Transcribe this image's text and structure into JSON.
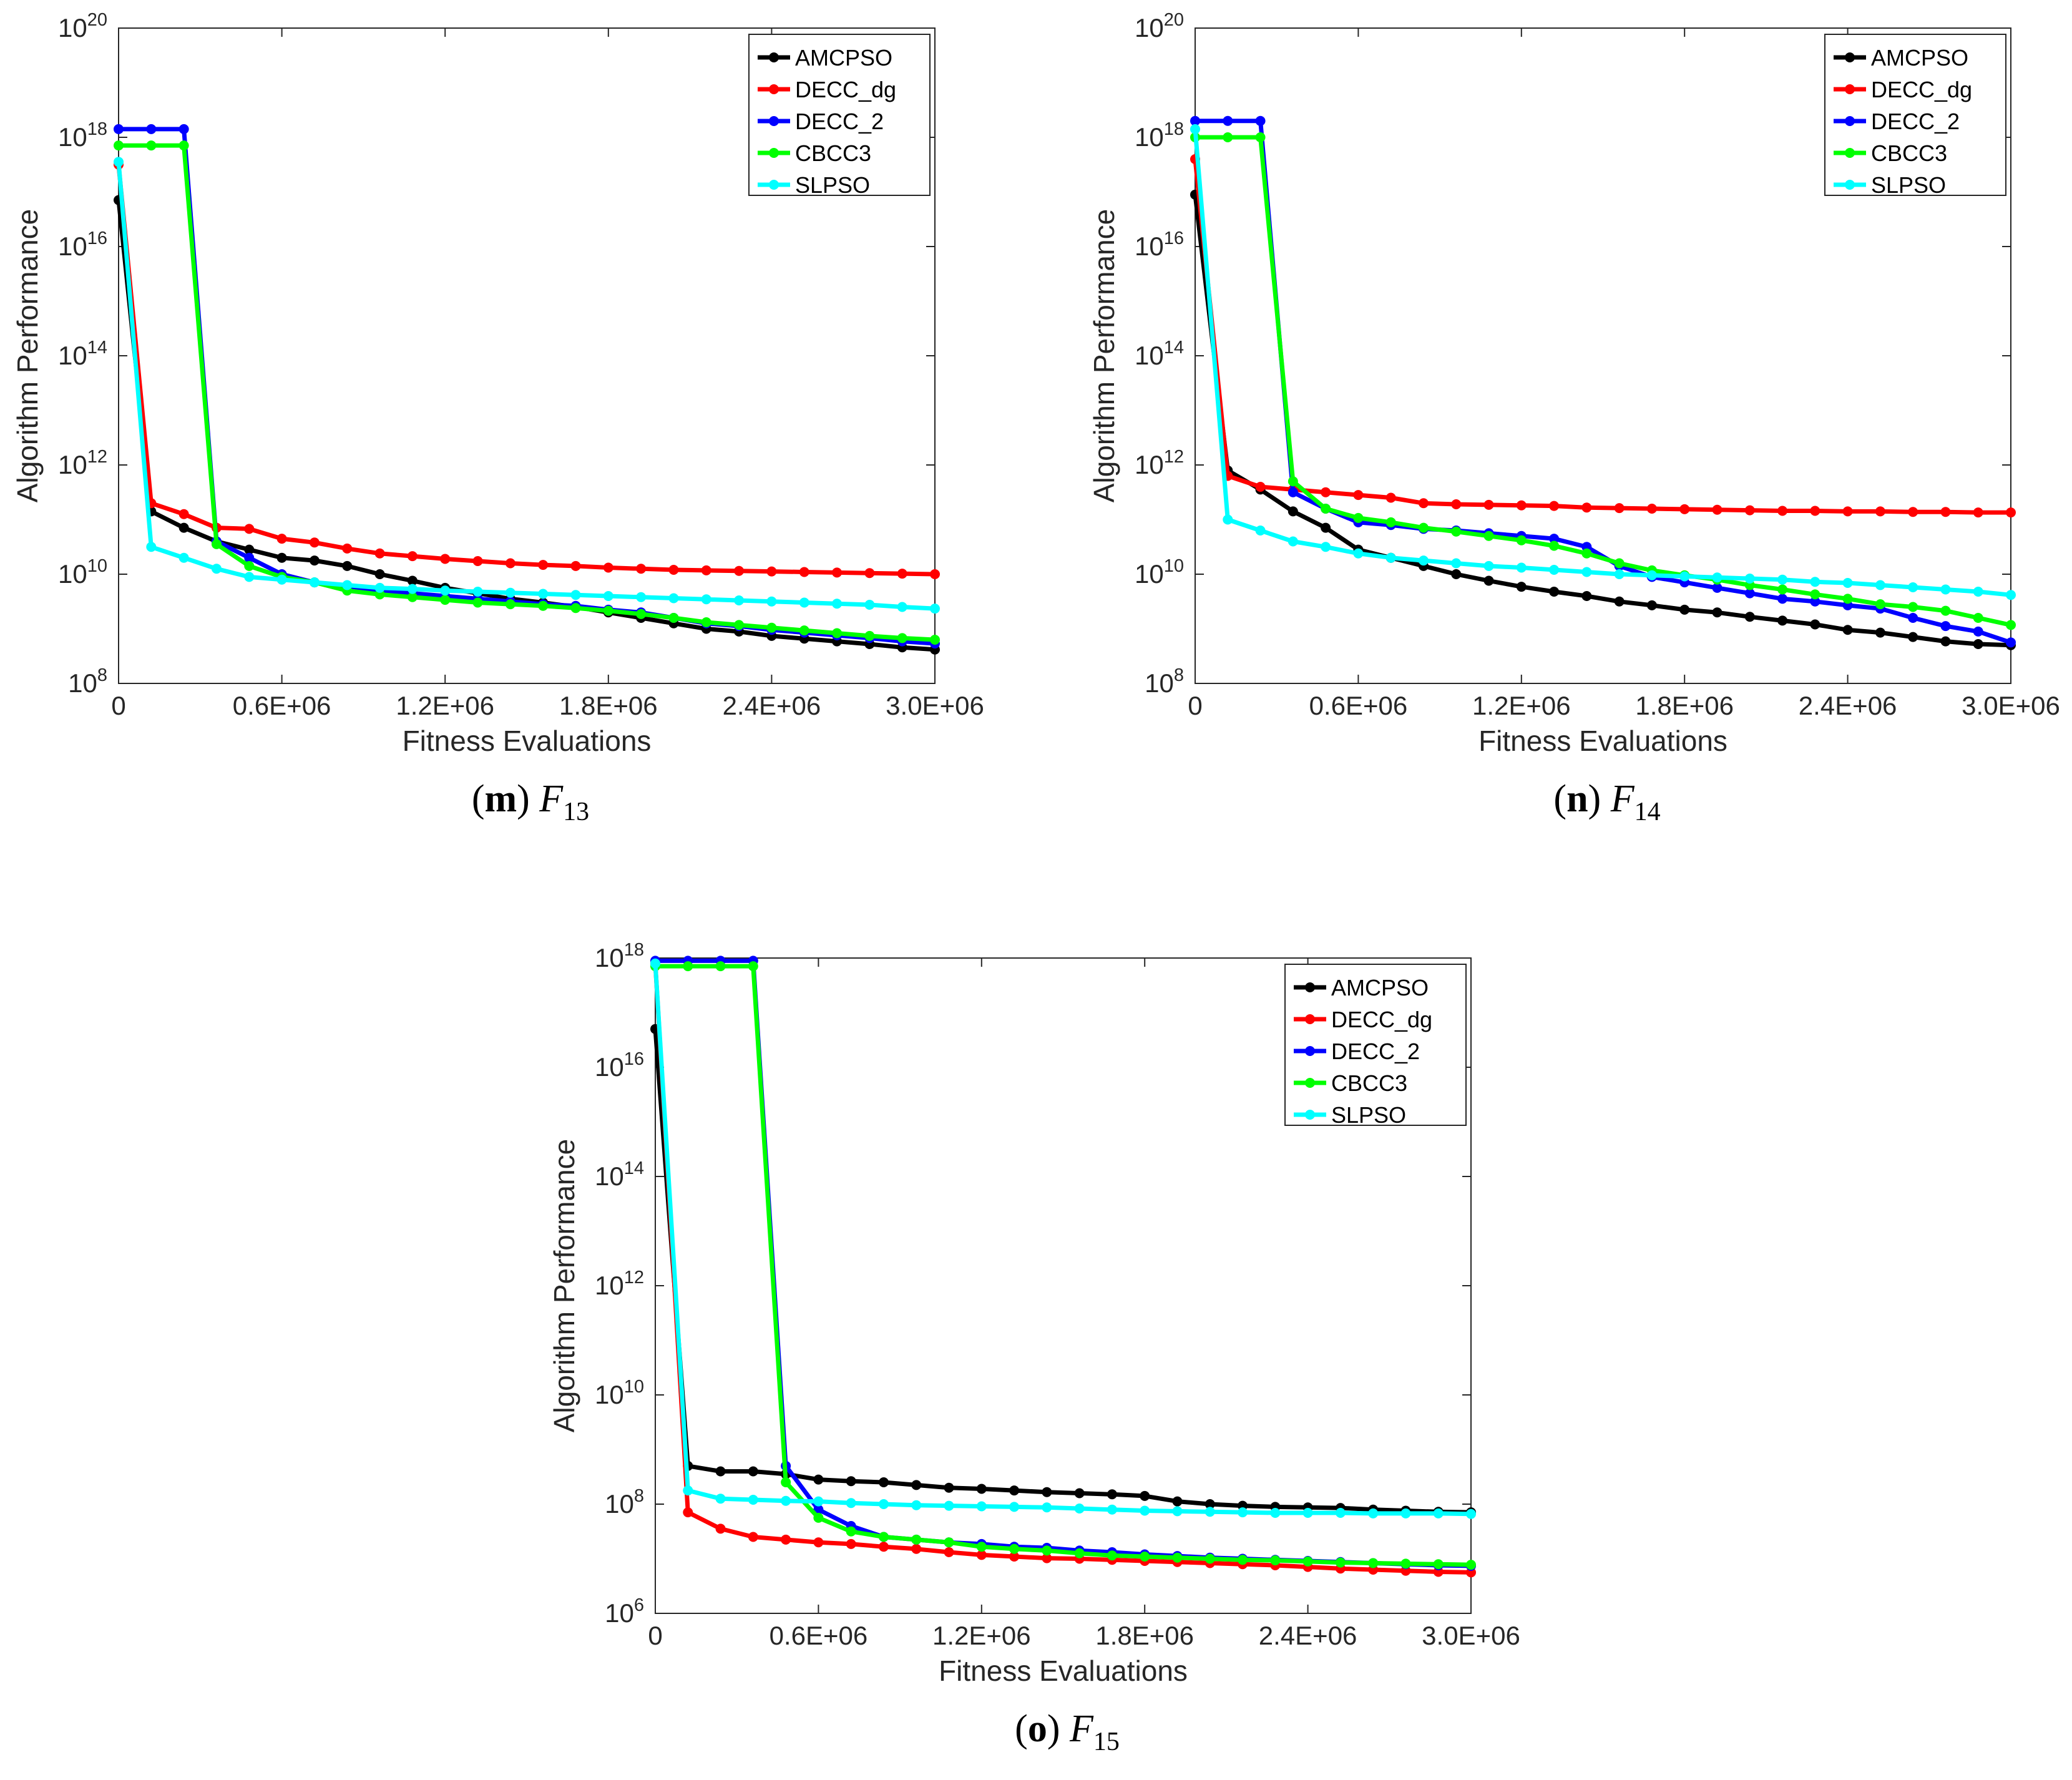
{
  "colors": {
    "AMCPSO": "#000000",
    "DECC_dg": "#ff0000",
    "DECC_2": "#0000ff",
    "CBCC3": "#00ff00",
    "SLPSO": "#00ffff"
  },
  "chart_data": [
    {
      "type": "line",
      "caption": {
        "letter": "m",
        "func": "F",
        "sub": "13"
      },
      "xlabel": "Fitness Evaluations",
      "ylabel": "Algorithm Performance",
      "yscale": "log",
      "ylim_exp": [
        8,
        20
      ],
      "ytick_base": "10",
      "ytick_exps": [
        "8",
        "10",
        "12",
        "14",
        "16",
        "18",
        "20"
      ],
      "xlim": [
        0,
        3000000
      ],
      "xticks": [
        0,
        600000,
        1200000,
        1800000,
        2400000,
        3000000
      ],
      "xtick_labels": [
        "0",
        "0.6E+06",
        "1.2E+06",
        "1.8E+06",
        "2.4E+06",
        "3.0E+06"
      ],
      "legend_position": "top-right",
      "x": [
        0,
        120000,
        240000,
        360000,
        480000,
        600000,
        720000,
        840000,
        960000,
        1080000,
        1200000,
        1320000,
        1440000,
        1560000,
        1680000,
        1800000,
        1920000,
        2040000,
        2160000,
        2280000,
        2400000,
        2520000,
        2640000,
        2760000,
        2880000,
        3000000
      ],
      "series": [
        {
          "name": "AMCPSO",
          "log10": [
            16.85,
            11.15,
            10.85,
            10.6,
            10.45,
            10.3,
            10.25,
            10.15,
            10.0,
            9.88,
            9.75,
            9.65,
            9.55,
            9.48,
            9.4,
            9.3,
            9.2,
            9.1,
            9.0,
            8.95,
            8.87,
            8.82,
            8.77,
            8.72,
            8.66,
            8.62
          ]
        },
        {
          "name": "DECC_dg",
          "log10": [
            17.5,
            11.3,
            11.1,
            10.85,
            10.83,
            10.65,
            10.58,
            10.47,
            10.38,
            10.33,
            10.28,
            10.24,
            10.2,
            10.17,
            10.15,
            10.12,
            10.1,
            10.08,
            10.07,
            10.06,
            10.05,
            10.04,
            10.03,
            10.02,
            10.01,
            10.0
          ]
        },
        {
          "name": "DECC_2",
          "log10": [
            18.15,
            18.15,
            18.15,
            10.6,
            10.3,
            10.0,
            9.85,
            9.78,
            9.7,
            9.65,
            9.6,
            9.55,
            9.5,
            9.45,
            9.42,
            9.35,
            9.3,
            9.2,
            9.1,
            9.05,
            8.98,
            8.93,
            8.88,
            8.83,
            8.77,
            8.73
          ]
        },
        {
          "name": "CBCC3",
          "log10": [
            17.85,
            17.85,
            17.85,
            10.55,
            10.15,
            9.95,
            9.85,
            9.7,
            9.63,
            9.58,
            9.53,
            9.48,
            9.45,
            9.42,
            9.38,
            9.33,
            9.27,
            9.2,
            9.12,
            9.07,
            9.02,
            8.97,
            8.92,
            8.87,
            8.83,
            8.8
          ]
        },
        {
          "name": "SLPSO",
          "log10": [
            17.55,
            10.5,
            10.3,
            10.1,
            9.95,
            9.9,
            9.85,
            9.8,
            9.75,
            9.73,
            9.7,
            9.68,
            9.66,
            9.64,
            9.62,
            9.6,
            9.58,
            9.56,
            9.54,
            9.52,
            9.5,
            9.48,
            9.46,
            9.44,
            9.4,
            9.37
          ]
        }
      ]
    },
    {
      "type": "line",
      "caption": {
        "letter": "n",
        "func": "F",
        "sub": "14"
      },
      "xlabel": "Fitness Evaluations",
      "ylabel": "Algorithm Performance",
      "yscale": "log",
      "ylim_exp": [
        8,
        20
      ],
      "ytick_base": "10",
      "ytick_exps": [
        "8",
        "10",
        "12",
        "14",
        "16",
        "18",
        "20"
      ],
      "xlim": [
        0,
        3000000
      ],
      "xticks": [
        0,
        600000,
        1200000,
        1800000,
        2400000,
        3000000
      ],
      "xtick_labels": [
        "0",
        "0.6E+06",
        "1.2E+06",
        "1.8E+06",
        "2.4E+06",
        "3.0E+06"
      ],
      "legend_position": "top-right",
      "x": [
        0,
        120000,
        240000,
        360000,
        480000,
        600000,
        720000,
        840000,
        960000,
        1080000,
        1200000,
        1320000,
        1440000,
        1560000,
        1680000,
        1800000,
        1920000,
        2040000,
        2160000,
        2280000,
        2400000,
        2520000,
        2640000,
        2760000,
        2880000,
        3000000
      ],
      "series": [
        {
          "name": "AMCPSO",
          "log10": [
            16.95,
            11.9,
            11.55,
            11.15,
            10.85,
            10.45,
            10.3,
            10.15,
            10.0,
            9.88,
            9.77,
            9.68,
            9.6,
            9.5,
            9.43,
            9.35,
            9.3,
            9.22,
            9.15,
            9.08,
            8.98,
            8.93,
            8.85,
            8.77,
            8.72,
            8.7
          ]
        },
        {
          "name": "DECC_dg",
          "log10": [
            17.6,
            11.8,
            11.6,
            11.55,
            11.5,
            11.45,
            11.4,
            11.3,
            11.28,
            11.27,
            11.26,
            11.25,
            11.22,
            11.21,
            11.2,
            11.19,
            11.18,
            11.17,
            11.16,
            11.16,
            11.15,
            11.15,
            11.14,
            11.14,
            11.13,
            11.13
          ]
        },
        {
          "name": "DECC_2",
          "log10": [
            18.3,
            18.3,
            18.3,
            11.5,
            11.2,
            10.95,
            10.9,
            10.83,
            10.8,
            10.75,
            10.7,
            10.65,
            10.5,
            10.15,
            9.95,
            9.85,
            9.75,
            9.65,
            9.55,
            9.5,
            9.43,
            9.37,
            9.2,
            9.05,
            8.95,
            8.75
          ]
        },
        {
          "name": "CBCC3",
          "log10": [
            18.0,
            18.0,
            18.0,
            11.7,
            11.2,
            11.03,
            10.95,
            10.85,
            10.78,
            10.7,
            10.62,
            10.52,
            10.38,
            10.2,
            10.07,
            9.98,
            9.9,
            9.8,
            9.72,
            9.63,
            9.55,
            9.45,
            9.4,
            9.33,
            9.2,
            9.07
          ]
        },
        {
          "name": "SLPSO",
          "log10": [
            18.15,
            11.0,
            10.8,
            10.6,
            10.5,
            10.38,
            10.3,
            10.25,
            10.2,
            10.15,
            10.12,
            10.08,
            10.04,
            10.0,
            9.98,
            9.96,
            9.94,
            9.92,
            9.9,
            9.86,
            9.84,
            9.8,
            9.76,
            9.72,
            9.68,
            9.62
          ]
        }
      ]
    },
    {
      "type": "line",
      "caption": {
        "letter": "o",
        "func": "F",
        "sub": "15"
      },
      "xlabel": "Fitness Evaluations",
      "ylabel": "Algorithm Performance",
      "yscale": "log",
      "ylim_exp": [
        6,
        18
      ],
      "ytick_base": "10",
      "ytick_exps": [
        "6",
        "8",
        "10",
        "12",
        "14",
        "16",
        "18"
      ],
      "xlim": [
        0,
        3000000
      ],
      "xticks": [
        0,
        600000,
        1200000,
        1800000,
        2400000,
        3000000
      ],
      "xtick_labels": [
        "0",
        "0.6E+06",
        "1.2E+06",
        "1.8E+06",
        "2.4E+06",
        "3.0E+06"
      ],
      "legend_position": "top-right",
      "x": [
        0,
        120000,
        240000,
        360000,
        480000,
        600000,
        720000,
        840000,
        960000,
        1080000,
        1200000,
        1320000,
        1440000,
        1560000,
        1680000,
        1800000,
        1920000,
        2040000,
        2160000,
        2280000,
        2400000,
        2520000,
        2640000,
        2760000,
        2880000,
        3000000
      ],
      "series": [
        {
          "name": "AMCPSO",
          "log10": [
            16.7,
            8.7,
            8.6,
            8.6,
            8.55,
            8.45,
            8.42,
            8.4,
            8.35,
            8.3,
            8.28,
            8.25,
            8.22,
            8.2,
            8.18,
            8.15,
            8.05,
            8.0,
            7.97,
            7.95,
            7.94,
            7.93,
            7.9,
            7.88,
            7.86,
            7.85
          ]
        },
        {
          "name": "DECC_dg",
          "log10": [
            17.9,
            7.85,
            7.55,
            7.4,
            7.35,
            7.3,
            7.27,
            7.22,
            7.18,
            7.12,
            7.07,
            7.04,
            7.01,
            7.0,
            6.98,
            6.96,
            6.94,
            6.92,
            6.9,
            6.88,
            6.85,
            6.82,
            6.8,
            6.78,
            6.76,
            6.75
          ]
        },
        {
          "name": "DECC_2",
          "log10": [
            17.95,
            17.95,
            17.95,
            17.95,
            8.7,
            7.9,
            7.6,
            7.4,
            7.35,
            7.3,
            7.27,
            7.22,
            7.2,
            7.15,
            7.12,
            7.08,
            7.05,
            7.02,
            7.0,
            6.98,
            6.96,
            6.94,
            6.92,
            6.9,
            6.88,
            6.87
          ]
        },
        {
          "name": "CBCC3",
          "log10": [
            17.85,
            17.85,
            17.85,
            17.85,
            8.4,
            7.75,
            7.5,
            7.4,
            7.35,
            7.3,
            7.22,
            7.18,
            7.15,
            7.1,
            7.06,
            7.04,
            7.02,
            7.0,
            6.98,
            6.97,
            6.95,
            6.93,
            6.92,
            6.91,
            6.9,
            6.89
          ]
        },
        {
          "name": "SLPSO",
          "log10": [
            17.9,
            8.25,
            8.1,
            8.08,
            8.06,
            8.05,
            8.02,
            8.0,
            7.98,
            7.97,
            7.96,
            7.95,
            7.94,
            7.92,
            7.9,
            7.88,
            7.87,
            7.86,
            7.85,
            7.84,
            7.84,
            7.84,
            7.83,
            7.83,
            7.83,
            7.82
          ]
        }
      ]
    }
  ]
}
